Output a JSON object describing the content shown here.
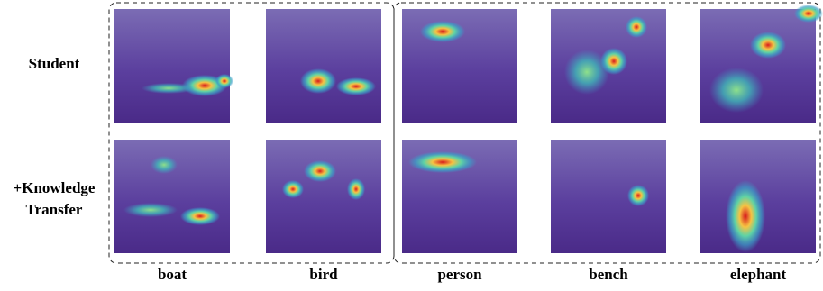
{
  "row_labels": [
    [
      "Student"
    ],
    [
      "+Knowledge",
      "Transfer"
    ]
  ],
  "column_labels": [
    "boat",
    "bird",
    "person",
    "bench",
    "elephant"
  ]
}
